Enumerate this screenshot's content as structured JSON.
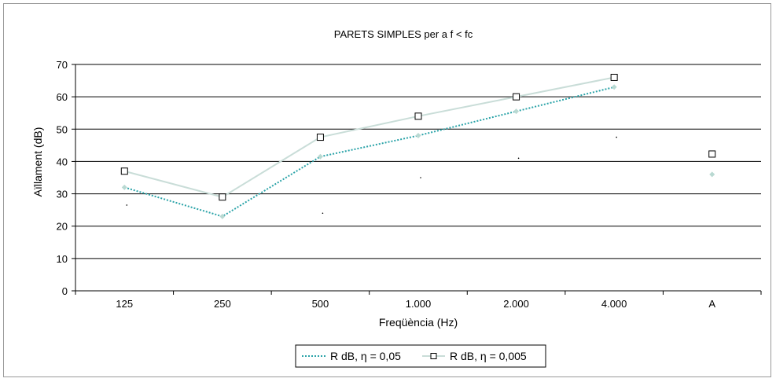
{
  "chart_data": {
    "type": "line",
    "title": "PARETS SIMPLES per a f < fc",
    "xlabel": "Freqüència (Hz)",
    "ylabel": "Aïllament (dB)",
    "categories": [
      "125",
      "250",
      "500",
      "1.000",
      "2.000",
      "4.000",
      "A"
    ],
    "ylim": [
      0,
      70
    ],
    "yticks": [
      "0",
      "10",
      "20",
      "30",
      "40",
      "50",
      "60",
      "70"
    ],
    "grid": "horizontal",
    "legend_position": "bottom",
    "series": [
      {
        "name": "R dB, η = 0,05",
        "color": "#2aa3a8",
        "line_style": "dotted",
        "values": [
          32,
          23,
          41.5,
          48,
          55.5,
          63,
          36
        ]
      },
      {
        "name": "R dB, η = 0,005",
        "color": "#c9ddd8",
        "marker": "square",
        "values": [
          37,
          29,
          47.5,
          54,
          60,
          66,
          42.3
        ]
      }
    ],
    "stray_points": [
      26.5,
      29.5,
      24,
      35,
      41,
      47.5
    ]
  }
}
